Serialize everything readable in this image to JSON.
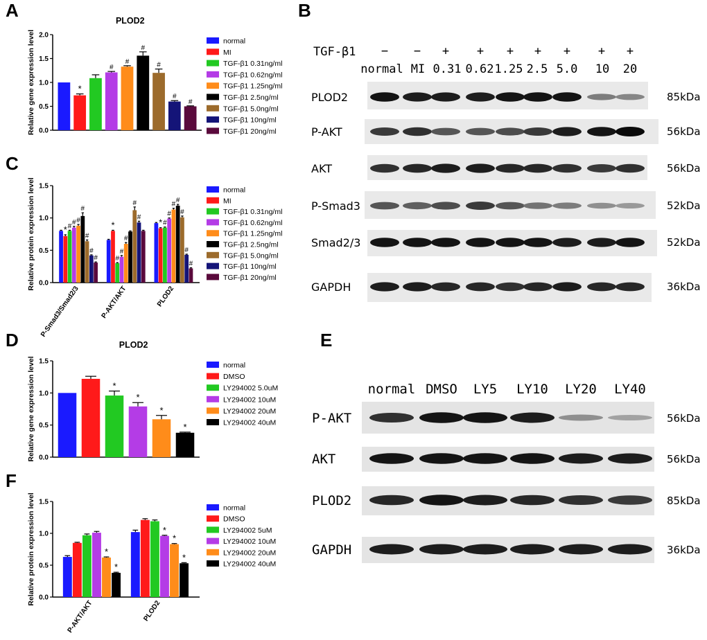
{
  "colors": {
    "blue": "#1a1aff",
    "red": "#ff1a1a",
    "green": "#22c922",
    "purple": "#b43ce6",
    "orange": "#ff8c1a",
    "black": "#000000",
    "brown": "#9c6b2c",
    "navy": "#141478",
    "maroon": "#5a0a3c"
  },
  "panels": {
    "A": "A",
    "B": "B",
    "C": "C",
    "D": "D",
    "E": "E",
    "F": "F"
  },
  "chart_data": [
    {
      "id": "A",
      "type": "bar",
      "title": "PLOD2",
      "ylabel": "Relative gene expression level",
      "xlabel": "",
      "ylim": [
        0,
        2.0
      ],
      "yticks": [
        "0.0",
        "0.5",
        "1.0",
        "1.5",
        "2.0"
      ],
      "categories": [
        "normal",
        "MI",
        "TGF-β1 0.31ng/ml",
        "TGF-β1 0.62ng/ml",
        "TGF-β1 1.25ng/ml",
        "TGF-β1 2.5ng/ml",
        "TGF-β1 5.0ng/ml",
        "TGF-β1 10ng/ml",
        "TGF-β1 20ng/ml"
      ],
      "values": [
        1.0,
        0.73,
        1.09,
        1.21,
        1.33,
        1.56,
        1.2,
        0.6,
        0.5
      ],
      "errors": [
        0.0,
        0.03,
        0.07,
        0.02,
        0.02,
        0.08,
        0.08,
        0.02,
        0.01
      ],
      "marks": [
        "",
        "*",
        "",
        "#",
        "#",
        "#",
        "#",
        "#",
        "#"
      ],
      "legend": [
        "normal",
        "MI",
        "TGF-β1 0.31ng/ml",
        "TGF-β1 0.62ng/ml",
        "TGF-β1 1.25ng/ml",
        "TGF-β1 2.5ng/ml",
        "TGF-β1 5.0ng/ml",
        "TGF-β1 10ng/ml",
        "TGF-β1 20ng/ml"
      ]
    },
    {
      "id": "C",
      "type": "bar",
      "title": "",
      "ylabel": "Relative protein expression level",
      "xlabel": "",
      "ylim": [
        0,
        1.5
      ],
      "yticks": [
        "0.0",
        "0.5",
        "1.0",
        "1.5"
      ],
      "groups": [
        "P-Smad3/Smad2/3",
        "P-AKT/AKT",
        "PLOD2"
      ],
      "series": [
        {
          "name": "normal",
          "values": [
            0.8,
            0.66,
            0.92
          ],
          "errors": [
            0.01,
            0.01,
            0.01
          ],
          "marks": [
            "",
            "",
            ""
          ]
        },
        {
          "name": "MI",
          "values": [
            0.72,
            0.8,
            0.84
          ],
          "errors": [
            0.02,
            0.01,
            0.01
          ],
          "marks": [
            "*",
            "*",
            "*"
          ]
        },
        {
          "name": "TGF-β1 0.31ng/ml",
          "values": [
            0.8,
            0.3,
            0.85
          ],
          "errors": [
            0.01,
            0.01,
            0.01
          ],
          "marks": [
            "#",
            "#",
            "#"
          ]
        },
        {
          "name": "TGF-β1 0.62ng/ml",
          "values": [
            0.85,
            0.4,
            0.99
          ],
          "errors": [
            0.02,
            0.02,
            0.01
          ],
          "marks": [
            "#",
            "#",
            "#"
          ]
        },
        {
          "name": "TGF-β1 1.25ng/ml",
          "values": [
            0.88,
            0.6,
            1.13
          ],
          "errors": [
            0.02,
            0.02,
            0.02
          ],
          "marks": [
            "#",
            "#",
            "#"
          ]
        },
        {
          "name": "TGF-β1 2.5ng/ml",
          "values": [
            1.03,
            0.79,
            1.19
          ],
          "errors": [
            0.05,
            0.01,
            0.02
          ],
          "marks": [
            "#",
            "",
            "#"
          ]
        },
        {
          "name": "TGF-β1 5.0ng/ml",
          "values": [
            0.64,
            1.12,
            1.01
          ],
          "errors": [
            0.02,
            0.05,
            0.02
          ],
          "marks": [
            "#",
            "#",
            "#"
          ]
        },
        {
          "name": "TGF-β1 10ng/ml",
          "values": [
            0.42,
            0.93,
            0.43
          ],
          "errors": [
            0.01,
            0.02,
            0.01
          ],
          "marks": [
            "#",
            "#",
            "#"
          ]
        },
        {
          "name": "TGF-β1 20ng/ml",
          "values": [
            0.31,
            0.8,
            0.22
          ],
          "errors": [
            0.01,
            0.01,
            0.01
          ],
          "marks": [
            "#",
            "",
            "#"
          ]
        }
      ],
      "legend": [
        "normal",
        "MI",
        "TGF-β1 0.31ng/ml",
        "TGF-β1 0.62ng/ml",
        "TGF-β1 1.25ng/ml",
        "TGF-β1 2.5ng/ml",
        "TGF-β1 5.0ng/ml",
        "TGF-β1 10ng/ml",
        "TGF-β1 20ng/ml"
      ]
    },
    {
      "id": "D",
      "type": "bar",
      "title": "PLOD2",
      "ylabel": "Relative gene expression level",
      "xlabel": "",
      "ylim": [
        0,
        1.5
      ],
      "yticks": [
        "0.0",
        "0.5",
        "1.0",
        "1.5"
      ],
      "categories": [
        "normal",
        "DMSO",
        "LY294002 5.0uM",
        "LY294002 10uM",
        "LY294002 20uM",
        "LY294002 40uM"
      ],
      "values": [
        1.0,
        1.22,
        0.96,
        0.79,
        0.59,
        0.38
      ],
      "errors": [
        0.0,
        0.04,
        0.07,
        0.06,
        0.06,
        0.01
      ],
      "marks": [
        "",
        "",
        "*",
        "*",
        "*",
        "*"
      ],
      "legend": [
        "normal",
        "DMSO",
        "LY294002 5.0uM",
        "LY294002 10uM",
        "LY294002 20uM",
        "LY294002 40uM"
      ]
    },
    {
      "id": "F",
      "type": "bar",
      "title": "",
      "ylabel": "Relative protein expression level",
      "xlabel": "",
      "ylim": [
        0,
        1.5
      ],
      "yticks": [
        "0.0",
        "0.5",
        "1.0",
        "1.5"
      ],
      "groups": [
        "P-AKT/AKT",
        "PLOD2"
      ],
      "series": [
        {
          "name": "normal",
          "values": [
            0.63,
            1.02
          ],
          "errors": [
            0.02,
            0.03
          ],
          "marks": [
            "",
            ""
          ]
        },
        {
          "name": "DMSO",
          "values": [
            0.85,
            1.21
          ],
          "errors": [
            0.01,
            0.02
          ],
          "marks": [
            "",
            ""
          ]
        },
        {
          "name": "LY294002 5uM",
          "values": [
            0.97,
            1.19
          ],
          "errors": [
            0.02,
            0.02
          ],
          "marks": [
            "",
            ""
          ]
        },
        {
          "name": "LY294002 10uM",
          "values": [
            1.01,
            0.96
          ],
          "errors": [
            0.02,
            0.01
          ],
          "marks": [
            "",
            "*"
          ]
        },
        {
          "name": "LY294002 20uM",
          "values": [
            0.62,
            0.83
          ],
          "errors": [
            0.01,
            0.01
          ],
          "marks": [
            "*",
            "*"
          ]
        },
        {
          "name": "LY294002 40uM",
          "values": [
            0.38,
            0.53
          ],
          "errors": [
            0.01,
            0.01
          ],
          "marks": [
            "*",
            "*"
          ]
        }
      ],
      "legend": [
        "normal",
        "DMSO",
        "LY294002 5uM",
        "LY294002 10uM",
        "LY294002 20uM",
        "LY294002 40uM"
      ]
    }
  ],
  "blot_B": {
    "treatment_label": "TGF-β1",
    "treatment_signs": [
      "−",
      "−",
      "+",
      "+",
      "+",
      "+",
      "+",
      "+",
      "+"
    ],
    "lane_labels": [
      "normal",
      "MI",
      "0.31",
      "0.62",
      "1.25",
      "2.5",
      "5.0",
      "10",
      "20"
    ],
    "bands": [
      {
        "name": "PLOD2",
        "kda": "85kDa"
      },
      {
        "name": "P-AKT",
        "kda": "56kDa"
      },
      {
        "name": "AKT",
        "kda": "56kDa"
      },
      {
        "name": "P-Smad3",
        "kda": "52kDa"
      },
      {
        "name": "Smad2/3",
        "kda": "52kDa"
      },
      {
        "name": "GAPDH",
        "kda": "36kDa"
      }
    ]
  },
  "blot_E": {
    "lane_labels": [
      "normal",
      "DMSO",
      "LY5",
      "LY10",
      "LY20",
      "LY40"
    ],
    "bands": [
      {
        "name": "P-AKT",
        "kda": "56kDa"
      },
      {
        "name": "AKT",
        "kda": "56kDa"
      },
      {
        "name": "PLOD2",
        "kda": "85kDa"
      },
      {
        "name": "GAPDH",
        "kda": "36kDa"
      }
    ]
  }
}
